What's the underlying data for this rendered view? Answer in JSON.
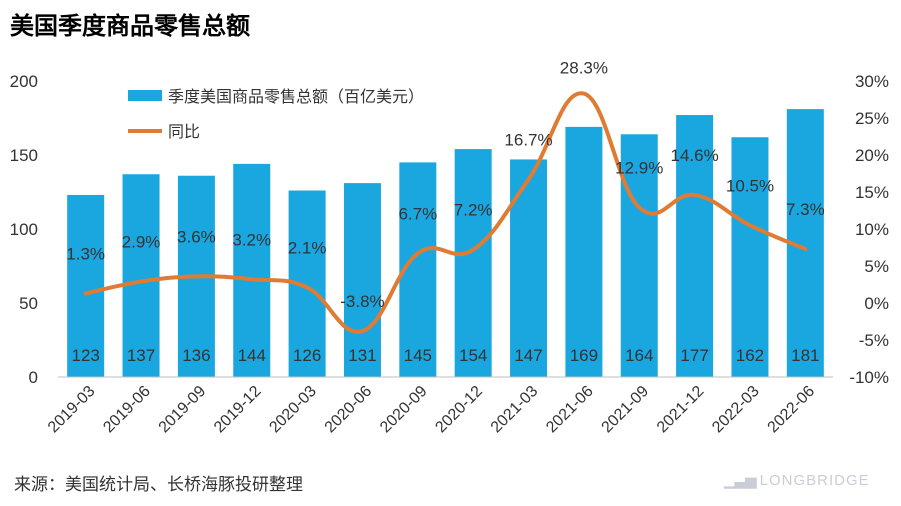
{
  "title": "美国季度商品零售总额",
  "source": "来源：美国统计局、长桥海豚投研整理",
  "brand": "LONGBRIDGE",
  "chart_data": {
    "type": "bar+line",
    "categories": [
      "2019-03",
      "2019-06",
      "2019-09",
      "2019-12",
      "2020-03",
      "2020-06",
      "2020-09",
      "2020-12",
      "2021-03",
      "2021-06",
      "2021-09",
      "2021-12",
      "2022-03",
      "2022-06"
    ],
    "series": [
      {
        "name": "季度美国商品零售总额（百亿美元）",
        "type": "bar",
        "axis": "left",
        "color": "#1aa7e0",
        "values": [
          123,
          137,
          136,
          144,
          126,
          131,
          145,
          154,
          147,
          169,
          164,
          177,
          162,
          181
        ],
        "labels": [
          "123",
          "137",
          "136",
          "144",
          "126",
          "131",
          "145",
          "154",
          "147",
          "169",
          "164",
          "177",
          "162",
          "181"
        ]
      },
      {
        "name": "同比",
        "type": "line",
        "axis": "right",
        "color": "#e07b33",
        "values": [
          1.3,
          2.9,
          3.6,
          3.2,
          2.1,
          -3.8,
          6.7,
          7.2,
          16.7,
          28.3,
          12.9,
          14.6,
          10.5,
          7.3
        ],
        "labels": [
          "1.3%",
          "2.9%",
          "3.6%",
          "3.2%",
          "2.1%",
          "-3.8%",
          "6.7%",
          "7.2%",
          "16.7%",
          "28.3%",
          "12.9%",
          "14.6%",
          "10.5%",
          "7.3%"
        ]
      }
    ],
    "y_left": {
      "min": 0,
      "max": 200,
      "ticks": [
        "0",
        "50",
        "100",
        "150",
        "200"
      ],
      "tick_values": [
        0,
        50,
        100,
        150,
        200
      ]
    },
    "y_right": {
      "min": -10,
      "max": 30,
      "ticks": [
        "-10%",
        "-5%",
        "0%",
        "5%",
        "10%",
        "15%",
        "20%",
        "25%",
        "30%"
      ],
      "tick_values": [
        -10,
        -5,
        0,
        5,
        10,
        15,
        20,
        25,
        30
      ]
    },
    "grid": false,
    "legend_position": "top-left"
  }
}
